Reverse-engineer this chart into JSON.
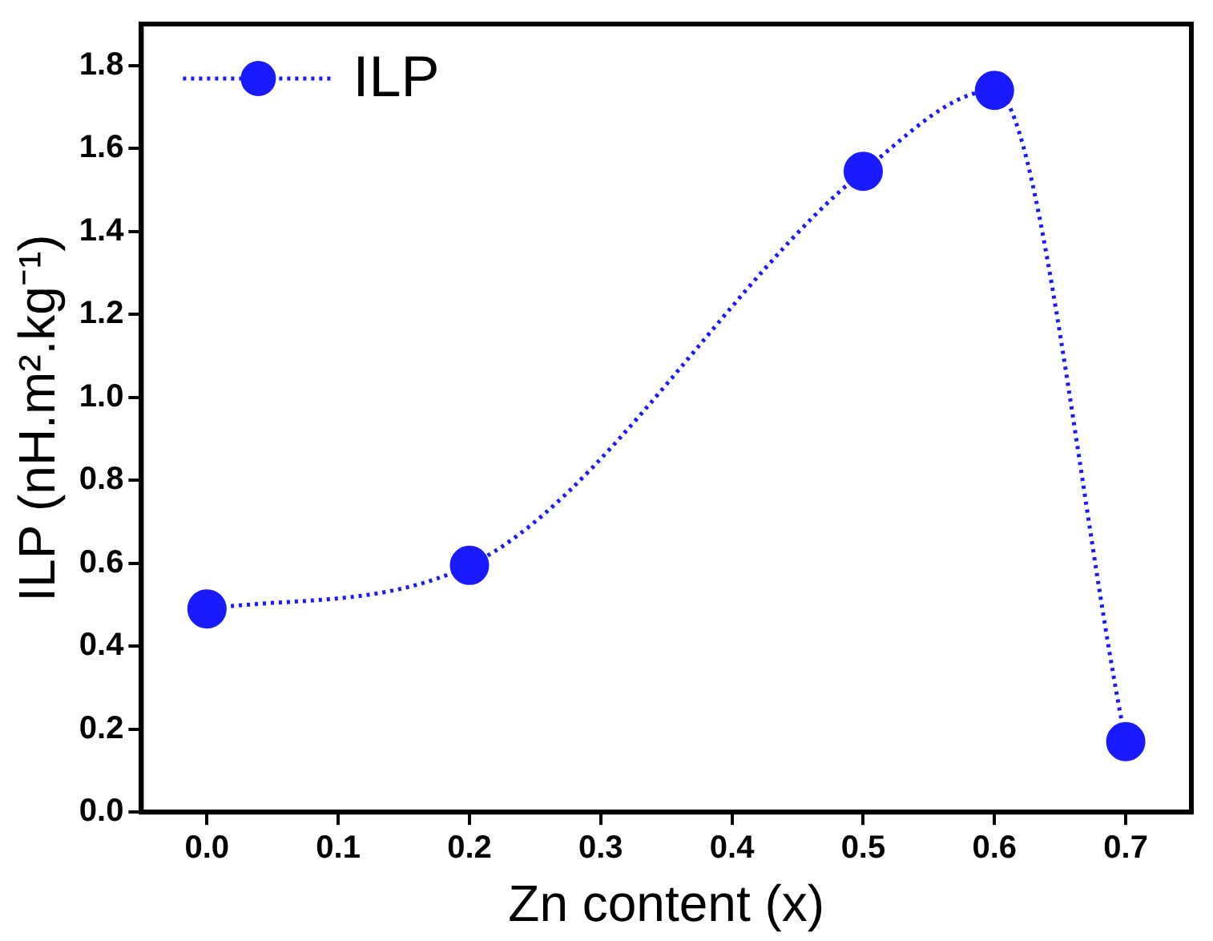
{
  "chart_data": {
    "type": "line",
    "xlabel": "Zn content (x)",
    "ylabel": "ILP (nH.m².kg⁻¹)",
    "x": [
      0.0,
      0.2,
      0.5,
      0.6,
      0.7
    ],
    "series": [
      {
        "name": "ILP",
        "color": "#1a1aff",
        "values": [
          0.49,
          0.595,
          1.545,
          1.74,
          0.17
        ]
      }
    ],
    "xlim": [
      -0.05,
      0.75
    ],
    "xticks": [
      {
        "value": 0,
        "label": "0.0"
      },
      0.1,
      0.2,
      0.3,
      0.4,
      0.5,
      0.6,
      0.7
    ],
    "ylim": [
      0,
      1.9
    ],
    "yticks": [
      {
        "value": 0,
        "label": "0.0"
      },
      0.2,
      0.4,
      0.6,
      0.8,
      {
        "value": 1,
        "label": "1.0"
      },
      1.2,
      1.4,
      1.6,
      1.8
    ],
    "grid": false,
    "legend": "top left",
    "marker": "circle",
    "line_style": "dotted"
  }
}
